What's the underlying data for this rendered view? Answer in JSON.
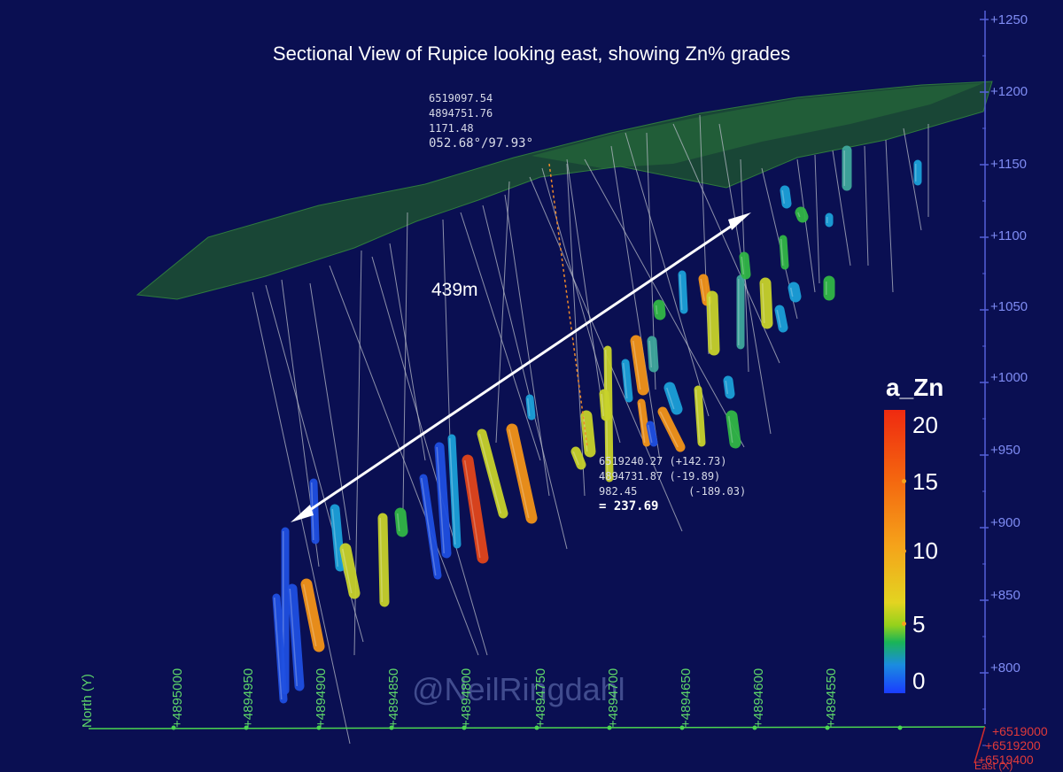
{
  "title": "Sectional View of Rupice looking east, showing Zn% grades",
  "distance_label": "439m",
  "readout_top": {
    "line1": "6519097.54",
    "line2": "4894751.76",
    "line3": "1171.48",
    "angle": "052.68°/97.93°"
  },
  "readout_bottom": {
    "line1": "6519240.27 (+142.73)",
    "line2": "4894731.87 (-19.89)",
    "line3": "982.45        (-189.03)",
    "result": "= 237.69"
  },
  "watermark": "@NeilRingdahl",
  "legend": {
    "title": "a_Zn",
    "ticks": [
      "20",
      "15",
      "10",
      "5",
      "0"
    ]
  },
  "elevation_axis": [
    "+1250",
    "+1200",
    "+1150",
    "+1100",
    "+1050",
    "+1000",
    "+950",
    "+900",
    "+850",
    "+800"
  ],
  "north_axis": {
    "title": "North (Y)",
    "ticks": [
      "+4895000",
      "+4894950",
      "+4894900",
      "+4894850",
      "+4894800",
      "+4894750",
      "+4894700",
      "+4894650",
      "+4894600",
      "+4894550"
    ]
  },
  "east_axis": {
    "ticks": [
      "+6519000",
      "+6519200",
      "+6519400"
    ],
    "title": "East (X)"
  },
  "colors": {
    "background": "#0a0f52",
    "surface": "#1f5a2e",
    "axis_elevation": "#7f8cf4",
    "axis_north": "#5fd86a",
    "axis_east": "#e03a3a"
  }
}
